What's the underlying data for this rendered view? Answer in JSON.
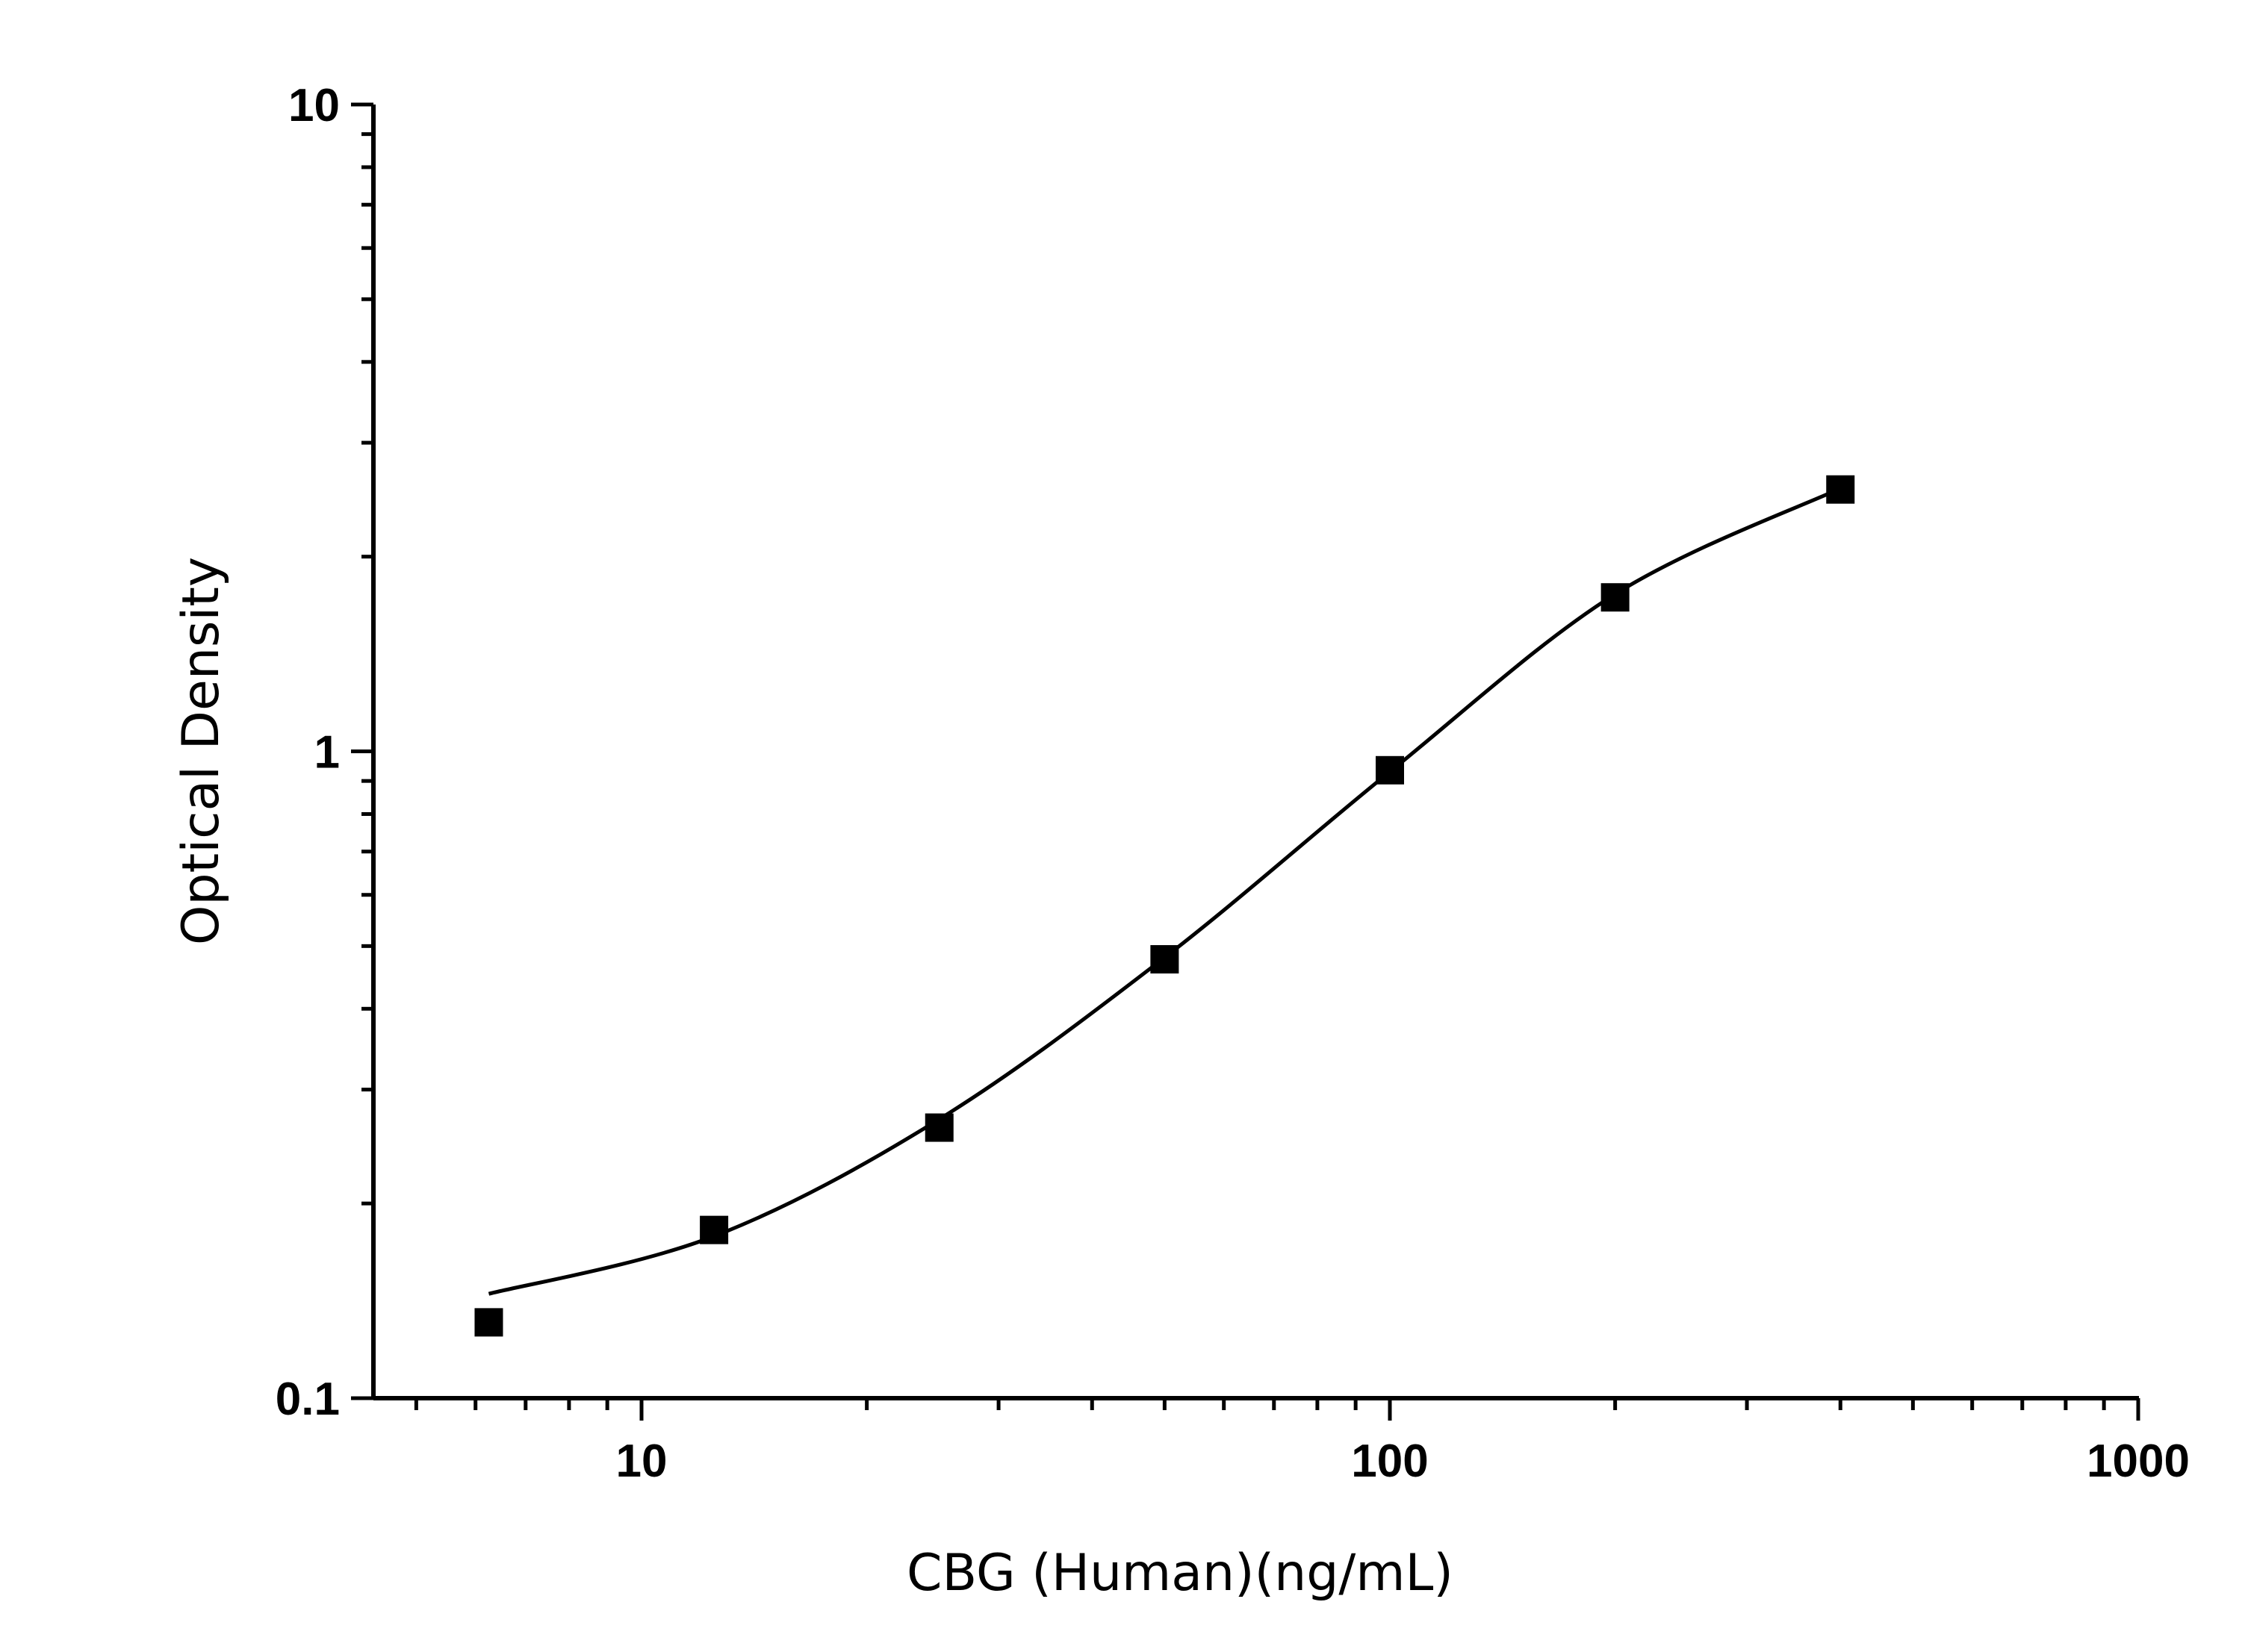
{
  "chart_data": {
    "type": "scatter",
    "title": "",
    "xlabel": "CBG (Human)(ng/mL)",
    "ylabel": "Optical Density",
    "xscale": "log",
    "yscale": "log",
    "xlim": [
      4.4,
      1000
    ],
    "ylim": [
      0.1,
      10
    ],
    "xticks": [
      {
        "value": 10,
        "label": "10"
      },
      {
        "value": 100,
        "label": "100"
      },
      {
        "value": 1000,
        "label": "1000"
      }
    ],
    "yticks": [
      {
        "value": 0.1,
        "label": "0.1"
      },
      {
        "value": 1,
        "label": "1"
      },
      {
        "value": 10,
        "label": "10"
      }
    ],
    "grid": false,
    "marker": "square",
    "color": "#000000",
    "series": [
      {
        "x": [
          6.25,
          12.5,
          25,
          50,
          100,
          200,
          400
        ],
        "y": [
          0.131,
          0.182,
          0.262,
          0.477,
          0.935,
          1.73,
          2.54
        ]
      }
    ],
    "fit_curve": {
      "x": [
        6.25,
        12.5,
        25,
        50,
        100,
        200,
        400
      ],
      "y": [
        0.145,
        0.178,
        0.27,
        0.48,
        0.93,
        1.75,
        2.55
      ]
    }
  }
}
